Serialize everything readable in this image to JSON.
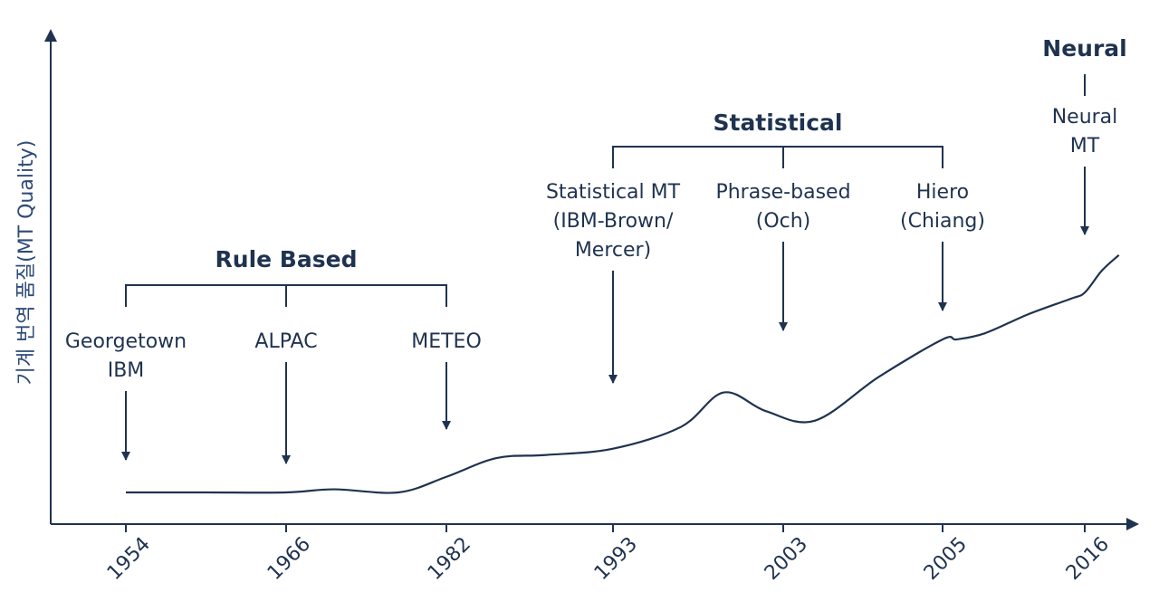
{
  "chart_data": {
    "type": "line",
    "title": "",
    "ylabel": "기계 번역 품질(MT Quality)",
    "xlabel": "",
    "ylim": [
      0,
      100
    ],
    "grid": false,
    "legend": "none",
    "x_ticks": [
      "1954",
      "1966",
      "1982",
      "1993",
      "2003",
      "2005",
      "2016"
    ],
    "series": [
      {
        "name": "MT Quality",
        "x": [
          0,
          0.5,
          1.0,
          1.3,
          1.7,
          2.0,
          2.3,
          2.6,
          3.0,
          3.4,
          3.65,
          3.9,
          4.2,
          4.6,
          5.0,
          5.1,
          5.3,
          5.6,
          5.9,
          6.0,
          6.2,
          6.4
        ],
        "y": [
          0,
          0,
          0,
          1,
          0,
          5,
          11,
          12,
          14,
          21,
          32,
          26,
          23,
          37,
          49,
          49,
          51,
          57,
          62,
          64,
          71,
          76
        ]
      }
    ],
    "groups": [
      {
        "label": "Rule Based",
        "from": "1954",
        "to": "1982"
      },
      {
        "label": "Statistical",
        "from": "1993",
        "to": "2005"
      },
      {
        "label": "Neural",
        "from": "2016",
        "to": "2016"
      }
    ],
    "annotations": [
      {
        "tick": "1954",
        "lines": [
          "Georgetown",
          "IBM"
        ]
      },
      {
        "tick": "1966",
        "lines": [
          "ALPAC"
        ]
      },
      {
        "tick": "1982",
        "lines": [
          "METEO"
        ]
      },
      {
        "tick": "1993",
        "lines": [
          "Statistical MT",
          "(IBM-Brown/",
          "Mercer)"
        ]
      },
      {
        "tick": "2003",
        "lines": [
          "Phrase-based",
          "(Och)"
        ]
      },
      {
        "tick": "2005",
        "lines": [
          "Hiero",
          "(Chiang)"
        ]
      },
      {
        "tick": "2016",
        "lines": [
          "Neural",
          "MT"
        ]
      }
    ]
  }
}
